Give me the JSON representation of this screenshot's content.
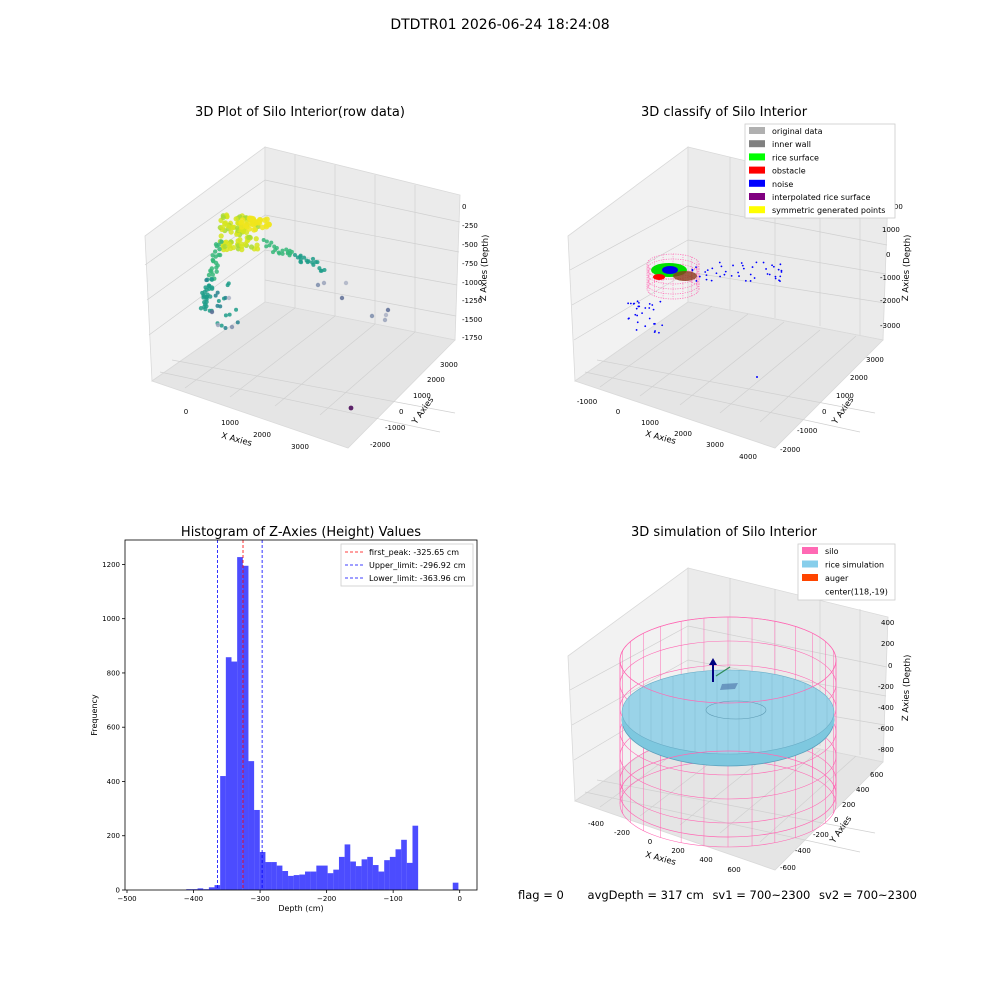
{
  "window": {
    "suptitle": "DTDTR01 2026-06-24 18:24:08"
  },
  "chart_data": [
    {
      "type": "scatter",
      "title": "3D Plot of Silo Interior(row data)",
      "xlabel": "X Axies",
      "ylabel": "Y Axies",
      "zlabel": "Z Axies (Depth)",
      "x_ticks": [
        "0",
        "1000",
        "2000",
        "3000"
      ],
      "y_ticks": [
        "-2000",
        "-1000",
        "0",
        "1000",
        "2000",
        "3000"
      ],
      "z_ticks": [
        "0",
        "-250",
        "-500",
        "-750",
        "-1000",
        "-1250",
        "-1500",
        "-1750"
      ],
      "colormap": "viridis (yellow = shallow, purple = deep)",
      "grid": true
    },
    {
      "type": "scatter",
      "title": "3D classify of Silo Interior",
      "xlabel": "X Axies",
      "ylabel": "Y Axies",
      "zlabel": "Z Axies (Depth)",
      "x_ticks": [
        "-1000",
        "0",
        "1000",
        "2000",
        "3000",
        "4000"
      ],
      "y_ticks": [
        "-2000",
        "-1000",
        "0",
        "1000",
        "2000",
        "3000"
      ],
      "z_ticks": [
        "2000",
        "1000",
        "0",
        "-1000",
        "-2000",
        "-3000"
      ],
      "legend_location": "top-right",
      "legend": [
        {
          "label": "original data",
          "color": "#b0b0b0"
        },
        {
          "label": "inner wall",
          "color": "#808080"
        },
        {
          "label": "rice surface",
          "color": "#00ff00"
        },
        {
          "label": "obstacle",
          "color": "#ff0000"
        },
        {
          "label": "noise",
          "color": "#0000ff"
        },
        {
          "label": "interpolated rice surface",
          "color": "#800080"
        },
        {
          "label": "symmetric generated points",
          "color": "#ffff00"
        }
      ],
      "grid": true
    },
    {
      "type": "bar",
      "title": "Histogram of Z-Axies (Height) Values",
      "xlabel": "Depth (cm)",
      "ylabel": "Frequency",
      "xlim": [
        -503,
        26
      ],
      "ylim": [
        0,
        1290
      ],
      "x_ticks": [
        -500,
        -400,
        -300,
        -200,
        -100,
        0
      ],
      "y_ticks": [
        0,
        200,
        400,
        600,
        800,
        1000,
        1200
      ],
      "bar_color": "#0000ff",
      "bin_width": 8.5,
      "bins": [
        {
          "x": -406.7,
          "count": 3
        },
        {
          "x": -398.2,
          "count": 3
        },
        {
          "x": -389.7,
          "count": 6
        },
        {
          "x": -381.2,
          "count": 3
        },
        {
          "x": -372.7,
          "count": 10
        },
        {
          "x": -364.2,
          "count": 18
        },
        {
          "x": -355.7,
          "count": 420
        },
        {
          "x": -347.2,
          "count": 858
        },
        {
          "x": -338.7,
          "count": 842
        },
        {
          "x": -330.2,
          "count": 1227
        },
        {
          "x": -321.7,
          "count": 1195
        },
        {
          "x": -313.2,
          "count": 475
        },
        {
          "x": -304.7,
          "count": 295
        },
        {
          "x": -296.2,
          "count": 140
        },
        {
          "x": -287.7,
          "count": 103
        },
        {
          "x": -279.2,
          "count": 103
        },
        {
          "x": -270.7,
          "count": 90
        },
        {
          "x": -262.2,
          "count": 70
        },
        {
          "x": -253.7,
          "count": 52
        },
        {
          "x": -245.2,
          "count": 55
        },
        {
          "x": -236.7,
          "count": 57
        },
        {
          "x": -228.2,
          "count": 68
        },
        {
          "x": -219.7,
          "count": 68
        },
        {
          "x": -211.2,
          "count": 90
        },
        {
          "x": -202.7,
          "count": 90
        },
        {
          "x": -194.2,
          "count": 62
        },
        {
          "x": -185.7,
          "count": 75
        },
        {
          "x": -177.2,
          "count": 122
        },
        {
          "x": -168.7,
          "count": 168
        },
        {
          "x": -160.2,
          "count": 105
        },
        {
          "x": -151.7,
          "count": 88
        },
        {
          "x": -143.2,
          "count": 113
        },
        {
          "x": -134.7,
          "count": 122
        },
        {
          "x": -126.2,
          "count": 92
        },
        {
          "x": -117.7,
          "count": 68
        },
        {
          "x": -109.2,
          "count": 110
        },
        {
          "x": -100.7,
          "count": 122
        },
        {
          "x": -92.2,
          "count": 150
        },
        {
          "x": -83.7,
          "count": 185
        },
        {
          "x": -75.2,
          "count": 100
        },
        {
          "x": -66.7,
          "count": 237
        },
        {
          "x": -6.2,
          "count": 27
        }
      ],
      "vlines": [
        {
          "x": -325.65,
          "color": "#ff0000",
          "label": "first_peak: -325.65 cm"
        },
        {
          "x": -296.92,
          "color": "#0000ff",
          "label": "Upper_limit: -296.92 cm"
        },
        {
          "x": -363.96,
          "color": "#0000ff",
          "label": "Lower_limit: -363.96 cm"
        }
      ],
      "legend_location": "top-right"
    },
    {
      "type": "scatter",
      "title": "3D simulation of Silo Interior",
      "xlabel": "X Axies",
      "ylabel": "Y Axies",
      "zlabel": "Z Axies (Depth)",
      "x_ticks": [
        "-400",
        "-200",
        "0",
        "200",
        "400",
        "600"
      ],
      "y_ticks": [
        "-600",
        "-400",
        "-200",
        "0",
        "200",
        "400",
        "600"
      ],
      "z_ticks": [
        "400",
        "200",
        "0",
        "-200",
        "-400",
        "-600",
        "-800"
      ],
      "legend_location": "top-right",
      "legend": [
        {
          "label": "silo",
          "color": "#ff69b4"
        },
        {
          "label": "rice simulation",
          "color": "#87ceeb"
        },
        {
          "label": "auger",
          "color": "#ff4500"
        },
        {
          "label": "center(118,-19)",
          "color": ""
        }
      ],
      "grid": true
    }
  ],
  "footer": {
    "flag": "flag = 0",
    "avg_depth": "avgDepth = 317 cm",
    "sv1": "sv1 = 700~2300",
    "sv2": "sv2 = 700~2300"
  }
}
